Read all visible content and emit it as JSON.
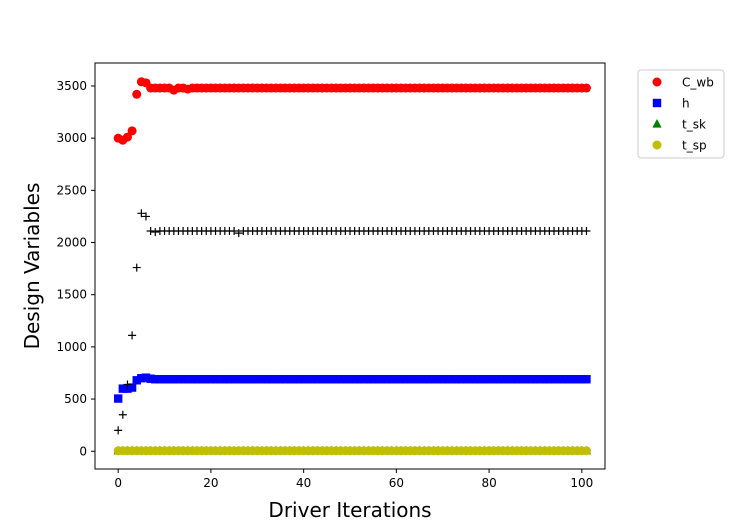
{
  "chart_data": {
    "type": "scatter",
    "title": "",
    "xlabel": "Driver Iterations",
    "ylabel": "Design Variables",
    "xlim": [
      -5,
      105
    ],
    "ylim": [
      -170,
      3720
    ],
    "xticks": [
      0,
      20,
      40,
      60,
      80,
      100
    ],
    "yticks": [
      0,
      500,
      1000,
      1500,
      2000,
      2500,
      3000,
      3500
    ],
    "grid": false,
    "legend_position": "outside-top-right",
    "series": [
      {
        "name": "C_wb",
        "marker": "circle",
        "color": "#ff0000",
        "points": [
          [
            0,
            3000
          ],
          [
            1,
            2980
          ],
          [
            2,
            3010
          ],
          [
            3,
            3070
          ],
          [
            4,
            3420
          ],
          [
            5,
            3540
          ],
          [
            6,
            3530
          ],
          [
            7,
            3480
          ],
          [
            8,
            3480
          ],
          [
            9,
            3480
          ],
          [
            10,
            3480
          ],
          [
            11,
            3480
          ],
          [
            12,
            3460
          ],
          [
            13,
            3480
          ],
          [
            14,
            3480
          ],
          [
            15,
            3470
          ]
        ],
        "steady": {
          "from": 16,
          "to": 101,
          "value": 3480
        }
      },
      {
        "name": "h",
        "marker": "square",
        "color": "#0000ff",
        "points": [
          [
            0,
            505
          ],
          [
            1,
            600
          ],
          [
            2,
            600
          ],
          [
            3,
            610
          ],
          [
            4,
            680
          ],
          [
            5,
            700
          ],
          [
            6,
            705
          ],
          [
            7,
            695
          ]
        ],
        "steady": {
          "from": 8,
          "to": 101,
          "value": 690
        }
      },
      {
        "name": "t_sk",
        "marker": "triangle",
        "color": "#008000",
        "points": [],
        "steady": {
          "from": 0,
          "to": 101,
          "value": 5
        }
      },
      {
        "name": "t_sp",
        "marker": "circle",
        "color": "#bfbf00",
        "points": [],
        "steady": {
          "from": 0,
          "to": 101,
          "value": 5
        }
      },
      {
        "marker": "plus",
        "color": "#000000",
        "points": [
          [
            0,
            200
          ],
          [
            1,
            350
          ],
          [
            2,
            640
          ],
          [
            3,
            1110
          ],
          [
            4,
            1760
          ],
          [
            5,
            2280
          ],
          [
            6,
            2250
          ],
          [
            7,
            2110
          ],
          [
            8,
            2100
          ],
          [
            9,
            2110
          ],
          [
            26,
            2090
          ]
        ],
        "steady": {
          "from": 10,
          "to": 101,
          "value": 2110
        }
      }
    ]
  }
}
